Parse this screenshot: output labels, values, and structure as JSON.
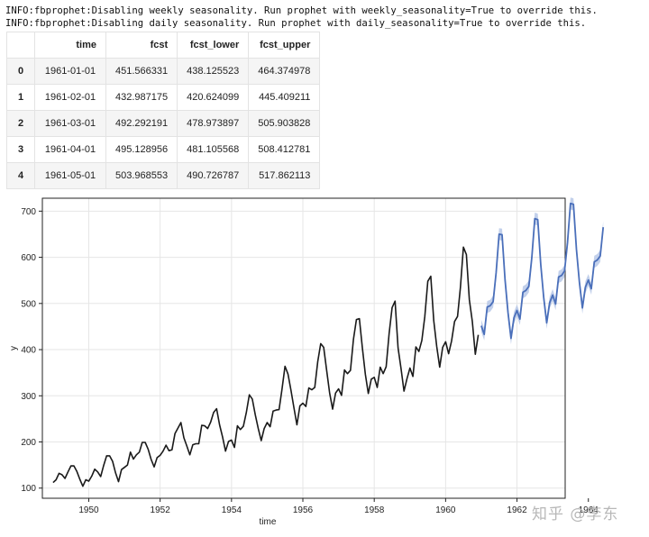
{
  "log_lines": [
    "INFO:fbprophet:Disabling weekly seasonality. Run prophet with weekly_seasonality=True to override this.",
    "INFO:fbprophet:Disabling daily seasonality. Run prophet with daily_seasonality=True to override this."
  ],
  "table": {
    "columns": [
      "",
      "time",
      "fcst",
      "fcst_lower",
      "fcst_upper"
    ],
    "rows": [
      [
        "0",
        "1961-01-01",
        "451.566331",
        "438.125523",
        "464.374978"
      ],
      [
        "1",
        "1961-02-01",
        "432.987175",
        "420.624099",
        "445.409211"
      ],
      [
        "2",
        "1961-03-01",
        "492.292191",
        "478.973897",
        "505.903828"
      ],
      [
        "3",
        "1961-04-01",
        "495.128956",
        "481.105568",
        "508.412781"
      ],
      [
        "4",
        "1961-05-01",
        "503.968553",
        "490.726787",
        "517.862113"
      ]
    ]
  },
  "watermark": "知乎 @李东",
  "chart_data": {
    "type": "line",
    "xlabel": "time",
    "ylabel": "y",
    "xlim": [
      1948.7,
      1963.35
    ],
    "ylim": [
      78,
      728
    ],
    "xticks": [
      "1950",
      "1952",
      "1954",
      "1956",
      "1958",
      "1960",
      "1962",
      "1964"
    ],
    "xtick_values": [
      1950,
      1952,
      1954,
      1956,
      1958,
      1960,
      1962,
      1964
    ],
    "yticks": [
      100,
      200,
      300,
      400,
      500,
      600,
      700
    ],
    "grid": true,
    "x_start": 1949.0,
    "x_step": 0.08333,
    "colors": {
      "history": "#1a1a1a",
      "forecast": "#4a6fba",
      "band": "#b3c4e6"
    },
    "series": [
      {
        "values": [
          112,
          118,
          132,
          129,
          121,
          135,
          148,
          148,
          136,
          119,
          104,
          118,
          115,
          126,
          141,
          135,
          125,
          149,
          170,
          170,
          158,
          133,
          114,
          140,
          145,
          150,
          178,
          163,
          172,
          178,
          199,
          199,
          184,
          162,
          146,
          166,
          171,
          180,
          193,
          181,
          183,
          218,
          230,
          242,
          209,
          191,
          172,
          194,
          196,
          196,
          236,
          235,
          229,
          243,
          264,
          272,
          237,
          211,
          180,
          201,
          204,
          188,
          235,
          227,
          234,
          264,
          302,
          293,
          259,
          229,
          203,
          229,
          242,
          233,
          267,
          269,
          270,
          315,
          364,
          347,
          312,
          274,
          237,
          278,
          284,
          277,
          317,
          313,
          318,
          374,
          413,
          405,
          355,
          306,
          271,
          306,
          315,
          301,
          356,
          348,
          355,
          422,
          465,
          467,
          404,
          347,
          305,
          336,
          340,
          318,
          362,
          348,
          363,
          435,
          491,
          505,
          404,
          359,
          310,
          337,
          360,
          342,
          406,
          396,
          420,
          472,
          548,
          559,
          463,
          407,
          362,
          405,
          417,
          391,
          419,
          461,
          472,
          535,
          622,
          606,
          508,
          461,
          390,
          432
        ]
      },
      {
        "values": [
          451.6,
          433.0,
          492.3,
          495.1,
          504.0,
          566.5,
          650.2,
          649.0,
          551.4,
          480.1,
          424.5,
          469.0,
          484.8,
          466.3,
          524.3,
          528.1,
          537.0,
          599.4,
          683.9,
          681.6,
          584.8,
          512.7,
          458.0,
          501.8,
          518.1,
          498.8,
          557.4,
          560.7,
          570.2,
          632.1,
          716.6,
          714.9,
          617.4,
          545.9,
          490.5,
          535.1,
          550.8,
          532.0,
          590.2,
          594.0,
          602.8,
          665.3
        ]
      }
    ],
    "band_halfwidth": 13
  }
}
